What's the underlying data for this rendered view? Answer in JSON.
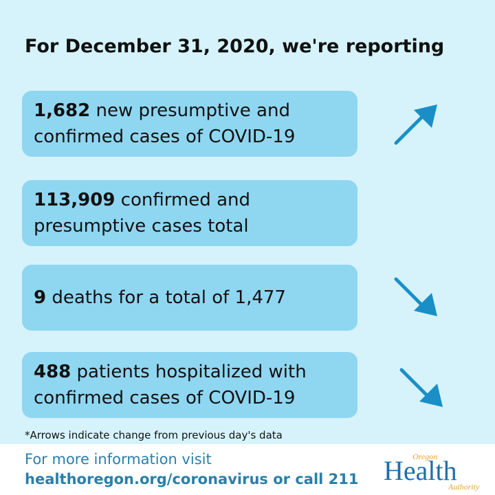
{
  "header": {
    "title": "For December 31, 2020, we're reporting"
  },
  "stats": [
    {
      "value": "1,682",
      "line1_rest": " new presumptive and",
      "line2": "confirmed cases of COVID-19",
      "trend": "up"
    },
    {
      "value": "113,909",
      "line1_rest": " confirmed and",
      "line2": "presumptive cases total",
      "trend": "none"
    },
    {
      "value": "9",
      "line1_rest": " deaths for a total of 1,477",
      "line2": "",
      "trend": "down"
    },
    {
      "value": "488",
      "line1_rest": " patients hospitalized with",
      "line2": "confirmed cases of COVID-19",
      "trend": "down"
    }
  ],
  "note": "*Arrows indicate change from previous day's data",
  "footer": {
    "line1": "For more information visit",
    "line2": "healthoregon.org/coronavirus or call 211"
  },
  "logo": {
    "small": "Oregon",
    "main": "Health",
    "sub": "Authority"
  },
  "colors": {
    "background": "#d6f3fb",
    "card": "#8fd6f1",
    "arrow": "#1a8fc7",
    "footer_text": "#2a7fa8"
  },
  "icons": {
    "up": "arrow-up-right-icon",
    "down": "arrow-down-right-icon"
  }
}
